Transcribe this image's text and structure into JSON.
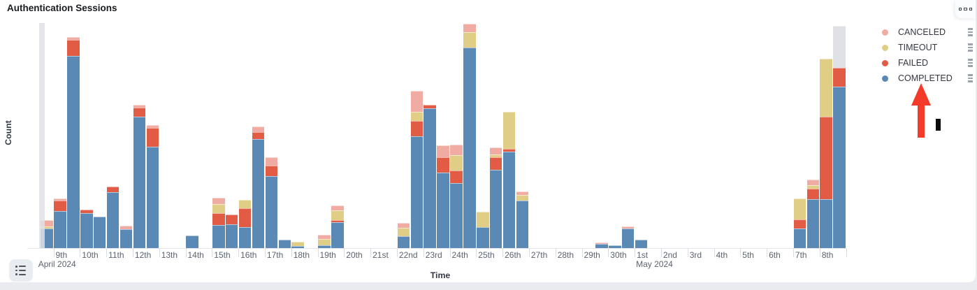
{
  "panel_title": "Authentication Sessions",
  "colors": {
    "completed": "#5a89b6",
    "failed": "#e15b45",
    "timeout": "#e0ce87",
    "canceled": "#f0aba3",
    "partial": "#e0e1e6",
    "arrow": "#f43a28"
  },
  "legend": {
    "items": [
      {
        "id": "canceled",
        "label": "CANCELED"
      },
      {
        "id": "timeout",
        "label": "TIMEOUT"
      },
      {
        "id": "failed",
        "label": "FAILED"
      },
      {
        "id": "completed",
        "label": "COMPLETED"
      }
    ]
  },
  "chart_data": {
    "type": "bar",
    "stacked": true,
    "title": "Authentication Sessions",
    "xlabel": "Time",
    "ylabel": "Count",
    "x_start": "2024-04-08 12:00",
    "x_end": "2024-05-09 00:00",
    "bin_hours": 12,
    "ylim": [
      0,
      322
    ],
    "y_axis_numbers_visible": false,
    "grid": false,
    "legend_position": "right",
    "series_order": [
      "completed",
      "failed",
      "timeout",
      "canceled",
      "partial"
    ],
    "day_tick_labels": [
      "9th",
      "10th",
      "11th",
      "12th",
      "13th",
      "14th",
      "15th",
      "16th",
      "17th",
      "18th",
      "19th",
      "20th",
      "21st",
      "22nd",
      "23rd",
      "24th",
      "25th",
      "26th",
      "27th",
      "28th",
      "29th",
      "30th",
      "1st",
      "2nd",
      "3rd",
      "4th",
      "5th",
      "6th",
      "7th",
      "8th"
    ],
    "month_labels": [
      {
        "text": "April 2024",
        "month_start_day_index": -8
      },
      {
        "text": "May 2024",
        "month_start_day_index": 22
      }
    ],
    "edge_partial_buckets": {
      "left_gray_band": true,
      "right_gray_top_on_last_bar": true
    },
    "bars": [
      {
        "i": 1,
        "label": "Apr 8 PM",
        "completed": 28,
        "timeout": 3,
        "canceled": 9
      },
      {
        "i": 2,
        "label": "Apr 9 AM",
        "completed": 53,
        "failed": 15,
        "canceled": 3
      },
      {
        "i": 3,
        "label": "Apr 9 PM",
        "completed": 275,
        "failed": 23,
        "canceled": 4
      },
      {
        "i": 4,
        "label": "Apr 10 AM",
        "completed": 50,
        "failed": 5
      },
      {
        "i": 5,
        "label": "Apr 10 PM",
        "completed": 45
      },
      {
        "i": 6,
        "label": "Apr 11 AM",
        "completed": 80,
        "failed": 8
      },
      {
        "i": 7,
        "label": "Apr 11 PM",
        "completed": 27,
        "canceled": 5
      },
      {
        "i": 8,
        "label": "Apr 12 AM",
        "completed": 188,
        "failed": 13,
        "canceled": 4
      },
      {
        "i": 9,
        "label": "Apr 12 PM",
        "completed": 145,
        "failed": 27,
        "canceled": 4
      },
      {
        "i": 12,
        "label": "Apr 14 AM",
        "completed": 18
      },
      {
        "i": 14,
        "label": "Apr 15 AM",
        "completed": 33,
        "failed": 17,
        "timeout": 13,
        "canceled": 9
      },
      {
        "i": 15,
        "label": "Apr 15 PM",
        "completed": 34,
        "failed": 14
      },
      {
        "i": 16,
        "label": "Apr 16 AM",
        "completed": 30,
        "failed": 27,
        "timeout": 12
      },
      {
        "i": 17,
        "label": "Apr 16 PM",
        "completed": 156,
        "failed": 10,
        "canceled": 8
      },
      {
        "i": 18,
        "label": "Apr 17 AM",
        "completed": 103,
        "failed": 15,
        "canceled": 12
      },
      {
        "i": 19,
        "label": "Apr 17 PM",
        "completed": 12
      },
      {
        "i": 20,
        "label": "Apr 18 AM",
        "completed": 3,
        "timeout": 6
      },
      {
        "i": 22,
        "label": "Apr 19 AM",
        "completed": 4,
        "timeout": 9,
        "canceled": 6
      },
      {
        "i": 23,
        "label": "Apr 19 PM",
        "completed": 37,
        "failed": 3,
        "timeout": 14,
        "canceled": 7
      },
      {
        "i": 28,
        "label": "Apr 22 AM",
        "completed": 17,
        "timeout": 12,
        "canceled": 7
      },
      {
        "i": 29,
        "label": "Apr 22 PM",
        "completed": 160,
        "failed": 22,
        "timeout": 13,
        "canceled": 30
      },
      {
        "i": 30,
        "label": "Apr 23 AM",
        "completed": 200,
        "failed": 5
      },
      {
        "i": 31,
        "label": "Apr 23 PM",
        "completed": 108,
        "failed": 22,
        "canceled": 17
      },
      {
        "i": 32,
        "label": "Apr 24 AM",
        "completed": 93,
        "failed": 18,
        "timeout": 22,
        "canceled": 15
      },
      {
        "i": 33,
        "label": "Apr 24 PM",
        "completed": 287,
        "timeout": 22,
        "canceled": 12
      },
      {
        "i": 34,
        "label": "Apr 25 AM",
        "completed": 30,
        "timeout": 22
      },
      {
        "i": 35,
        "label": "Apr 25 PM",
        "completed": 112,
        "failed": 18,
        "timeout": 4,
        "canceled": 10
      },
      {
        "i": 36,
        "label": "Apr 26 AM",
        "completed": 138,
        "failed": 4,
        "timeout": 53
      },
      {
        "i": 37,
        "label": "Apr 26 PM",
        "completed": 68,
        "timeout": 8,
        "canceled": 5
      },
      {
        "i": 43,
        "label": "Apr 29 PM",
        "completed": 6,
        "canceled": 2
      },
      {
        "i": 44,
        "label": "Apr 30 AM",
        "completed": 4
      },
      {
        "i": 45,
        "label": "Apr 30 PM",
        "completed": 28,
        "canceled": 3
      },
      {
        "i": 46,
        "label": "May 1 AM",
        "completed": 12
      },
      {
        "i": 58,
        "label": "May 7 AM",
        "completed": 28,
        "failed": 13,
        "timeout": 30
      },
      {
        "i": 59,
        "label": "May 7 PM",
        "completed": 70,
        "failed": 15,
        "timeout": 5,
        "canceled": 8
      },
      {
        "i": 60,
        "label": "May 8 AM",
        "completed": 70,
        "failed": 118,
        "timeout": 83
      },
      {
        "i": 61,
        "label": "May 8 PM",
        "completed": 231,
        "failed": 27,
        "partial": 60
      }
    ]
  }
}
